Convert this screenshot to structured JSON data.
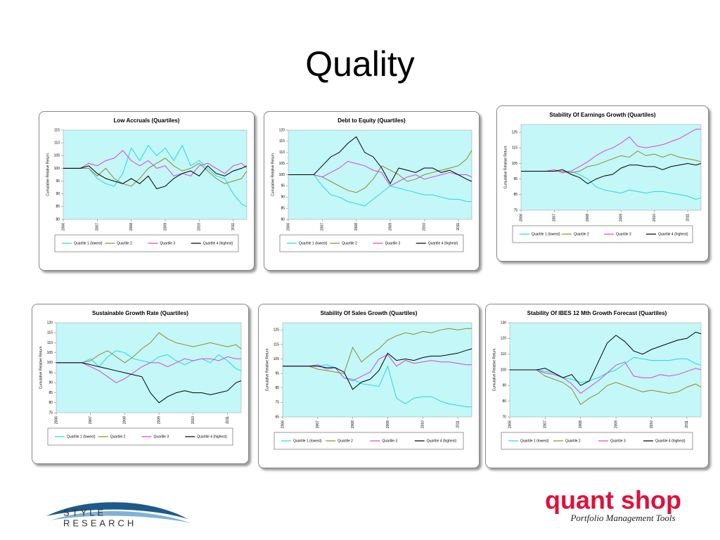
{
  "title": "Quality",
  "footer": {
    "style_research": [
      "STYLE",
      "RESEARCH"
    ],
    "quant_shop": "quant shop",
    "tagline": "Portfolio Management Tools"
  },
  "chart_data": [
    {
      "type": "line",
      "title": "Low Accruals (Quartiles)",
      "y_label": "Cumulative Relative Return",
      "x": [
        2006,
        2006.25,
        2006.5,
        2006.75,
        2007,
        2007.25,
        2007.5,
        2007.75,
        2008,
        2008.25,
        2008.5,
        2008.75,
        2009,
        2009.25,
        2009.5,
        2009.75,
        2010,
        2010.25,
        2010.5,
        2010.75,
        2011,
        2011.25,
        2011.4
      ],
      "xlim": [
        2006,
        2011.4
      ],
      "xticks": [
        2006,
        2007,
        2008,
        2009,
        2010,
        2011
      ],
      "ylim": [
        80,
        115
      ],
      "yticks": [
        80,
        85,
        90,
        95,
        100,
        105,
        110,
        115
      ],
      "series": [
        {
          "name": "Quartile 1 (lowest)",
          "color": "#22d8e8",
          "values": [
            100,
            100,
            100,
            100,
            96,
            94,
            93,
            98,
            108,
            103,
            109,
            105,
            108,
            103,
            109,
            101,
            103,
            100,
            97,
            96,
            90,
            86,
            85
          ]
        },
        {
          "name": "Quartile 2",
          "color": "#8c8c2a",
          "values": [
            100,
            100,
            100,
            100,
            97,
            100,
            96,
            94,
            93,
            96,
            100,
            102,
            104,
            101,
            99,
            100,
            102,
            99,
            96,
            94,
            95,
            96,
            99
          ]
        },
        {
          "name": "Quartile 3",
          "color": "#e03ee0",
          "values": [
            100,
            100,
            100,
            102,
            101,
            103,
            104,
            107,
            103,
            101,
            103,
            100,
            101,
            97,
            98,
            97,
            101,
            102,
            100,
            98,
            101,
            102,
            100
          ]
        },
        {
          "name": "Quartile 4 (highest)",
          "color": "#000000",
          "values": [
            100,
            100,
            100,
            101,
            98,
            96,
            95,
            94,
            96,
            94,
            97,
            92,
            93,
            96,
            98,
            99,
            97,
            101,
            98,
            97,
            99,
            100,
            101
          ]
        }
      ]
    },
    {
      "type": "line",
      "title": "Debt to Equity (Quartiles)",
      "y_label": "Cumulative Relative Return",
      "x": [
        2006,
        2006.25,
        2006.5,
        2006.75,
        2007,
        2007.25,
        2007.5,
        2007.75,
        2008,
        2008.25,
        2008.5,
        2008.75,
        2009,
        2009.25,
        2009.5,
        2009.75,
        2010,
        2010.25,
        2010.5,
        2010.75,
        2011,
        2011.25,
        2011.4
      ],
      "xlim": [
        2006,
        2011.4
      ],
      "xticks": [
        2006,
        2007,
        2008,
        2009,
        2010,
        2011
      ],
      "ylim": [
        80,
        120
      ],
      "yticks": [
        80,
        85,
        90,
        95,
        100,
        105,
        110,
        115,
        120
      ],
      "series": [
        {
          "name": "Quartile 1 (lowest)",
          "color": "#22d8e8",
          "values": [
            100,
            100,
            100,
            100,
            95,
            91,
            90,
            88,
            87,
            86,
            89,
            92,
            95,
            94,
            93,
            92,
            91,
            91,
            90,
            89,
            89,
            88,
            88
          ]
        },
        {
          "name": "Quartile 2",
          "color": "#8c8c2a",
          "values": [
            100,
            100,
            100,
            100,
            99,
            97,
            95,
            93,
            92,
            94,
            98,
            104,
            102,
            100,
            97,
            98,
            100,
            101,
            102,
            103,
            104,
            107,
            111
          ]
        },
        {
          "name": "Quartile 3",
          "color": "#e03ee0",
          "values": [
            100,
            100,
            100,
            100,
            99,
            101,
            103,
            106,
            105,
            104,
            102,
            101,
            95,
            97,
            99,
            100,
            98,
            99,
            100,
            101,
            100,
            100,
            99
          ]
        },
        {
          "name": "Quartile 4 (highest)",
          "color": "#000000",
          "values": [
            100,
            100,
            100,
            100,
            104,
            108,
            110,
            114,
            117,
            110,
            108,
            103,
            96,
            103,
            102,
            101,
            103,
            103,
            101,
            102,
            100,
            98,
            97
          ]
        }
      ]
    },
    {
      "type": "line",
      "title": "Stability Of Earnings Growth (Quartiles)",
      "y_label": "Cumulative Relative Return",
      "x": [
        2006,
        2006.25,
        2006.5,
        2006.75,
        2007,
        2007.25,
        2007.5,
        2007.75,
        2008,
        2008.25,
        2008.5,
        2008.75,
        2009,
        2009.25,
        2009.5,
        2009.75,
        2010,
        2010.25,
        2010.5,
        2010.75,
        2011,
        2011.25,
        2011.4
      ],
      "xlim": [
        2006,
        2011.4
      ],
      "xticks": [
        2006,
        2007,
        2008,
        2009,
        2010,
        2011
      ],
      "ylim": [
        75,
        130
      ],
      "yticks": [
        75,
        85,
        95,
        105,
        115,
        125
      ],
      "series": [
        {
          "name": "Quartile 1 (lowest)",
          "color": "#22d8e8",
          "values": [
            100,
            100,
            100,
            100,
            100,
            100,
            100,
            98,
            95,
            90,
            88,
            87,
            86,
            88,
            87,
            86,
            87,
            87,
            86,
            85,
            84,
            82,
            83
          ]
        },
        {
          "name": "Quartile 2",
          "color": "#8c8c2a",
          "values": [
            100,
            100,
            100,
            100,
            100,
            100,
            99,
            100,
            103,
            104,
            106,
            108,
            110,
            109,
            113,
            110,
            111,
            109,
            111,
            109,
            108,
            107,
            106
          ]
        },
        {
          "name": "Quartile 3",
          "color": "#e03ee0",
          "values": [
            100,
            100,
            100,
            100,
            101,
            99,
            100,
            103,
            106,
            110,
            113,
            115,
            118,
            122,
            116,
            115,
            116,
            117,
            119,
            121,
            124,
            127,
            127
          ]
        },
        {
          "name": "Quartile 4 (highest)",
          "color": "#000000",
          "values": [
            100,
            100,
            100,
            100,
            100,
            101,
            98,
            96,
            92,
            95,
            97,
            98,
            102,
            104,
            104,
            103,
            103,
            101,
            103,
            104,
            105,
            104,
            105
          ]
        }
      ]
    },
    {
      "type": "line",
      "title": "Sustainable Growth Rate (Quartiles)",
      "y_label": "Cumulative Relative Return",
      "x": [
        2006,
        2006.25,
        2006.5,
        2006.75,
        2007,
        2007.25,
        2007.5,
        2007.75,
        2008,
        2008.25,
        2008.5,
        2008.75,
        2009,
        2009.25,
        2009.5,
        2009.75,
        2010,
        2010.25,
        2010.5,
        2010.75,
        2011,
        2011.25,
        2011.4
      ],
      "xlim": [
        2006,
        2011.4
      ],
      "xticks": [
        2006,
        2007,
        2008,
        2009,
        2010,
        2011
      ],
      "ylim": [
        75,
        120
      ],
      "yticks": [
        75,
        80,
        85,
        90,
        95,
        100,
        105,
        110,
        115,
        120
      ],
      "series": [
        {
          "name": "Quartile 1 (lowest)",
          "color": "#22d8e8",
          "values": [
            100,
            100,
            100,
            100,
            102,
            98,
            103,
            106,
            105,
            102,
            101,
            100,
            103,
            104,
            101,
            99,
            101,
            102,
            100,
            104,
            101,
            97,
            96
          ]
        },
        {
          "name": "Quartile 2",
          "color": "#8c8c2a",
          "values": [
            100,
            100,
            100,
            100,
            101,
            104,
            106,
            103,
            100,
            103,
            107,
            110,
            115,
            112,
            110,
            109,
            108,
            109,
            110,
            109,
            108,
            109,
            107
          ]
        },
        {
          "name": "Quartile 3",
          "color": "#e03ee0",
          "values": [
            100,
            100,
            100,
            100,
            98,
            96,
            93,
            90,
            92,
            95,
            98,
            100,
            100,
            98,
            100,
            102,
            101,
            102,
            102,
            101,
            103,
            102,
            102
          ]
        },
        {
          "name": "Quartile 4 (highest)",
          "color": "#000000",
          "values": [
            100,
            100,
            100,
            100,
            99,
            98,
            97,
            96,
            95,
            94,
            93,
            85,
            80,
            83,
            85,
            86,
            85,
            85,
            84,
            85,
            86,
            90,
            91
          ]
        }
      ]
    },
    {
      "type": "line",
      "title": "Stability Of Sales Growth (Quartiles)",
      "y_label": "Cumulative Relative Return",
      "x": [
        2006,
        2006.25,
        2006.5,
        2006.75,
        2007,
        2007.25,
        2007.5,
        2007.75,
        2008,
        2008.25,
        2008.5,
        2008.75,
        2009,
        2009.25,
        2009.5,
        2009.75,
        2010,
        2010.25,
        2010.5,
        2010.75,
        2011,
        2011.25,
        2011.4
      ],
      "xlim": [
        2006,
        2011.4
      ],
      "xticks": [
        2006,
        2007,
        2008,
        2009,
        2010,
        2011
      ],
      "ylim": [
        65,
        130
      ],
      "yticks": [
        65,
        75,
        85,
        95,
        105,
        115,
        125
      ],
      "series": [
        {
          "name": "Quartile 1 (lowest)",
          "color": "#22d8e8",
          "values": [
            100,
            100,
            100,
            100,
            100,
            101,
            99,
            92,
            91,
            88,
            87,
            86,
            100,
            78,
            74,
            78,
            79,
            79,
            76,
            74,
            73,
            72,
            72
          ]
        },
        {
          "name": "Quartile 2",
          "color": "#8c8c2a",
          "values": [
            100,
            100,
            100,
            100,
            98,
            97,
            96,
            95,
            113,
            103,
            108,
            112,
            118,
            121,
            123,
            122,
            124,
            123,
            125,
            126,
            125,
            126,
            126
          ]
        },
        {
          "name": "Quartile 3",
          "color": "#e03ee0",
          "values": [
            100,
            100,
            100,
            100,
            101,
            98,
            99,
            92,
            90,
            93,
            96,
            105,
            108,
            100,
            104,
            102,
            103,
            104,
            103,
            103,
            102,
            101,
            101
          ]
        },
        {
          "name": "Quartile 4 (highest)",
          "color": "#000000",
          "values": [
            100,
            100,
            100,
            100,
            100,
            99,
            99,
            96,
            84,
            89,
            91,
            97,
            109,
            104,
            105,
            104,
            106,
            107,
            107,
            108,
            109,
            111,
            112
          ]
        }
      ]
    },
    {
      "type": "line",
      "title": "Stability Of IBES 12 Mth Growth Forecast (Quartiles)",
      "y_label": "Cumulative Relative Return",
      "x": [
        2006,
        2006.25,
        2006.5,
        2006.75,
        2007,
        2007.25,
        2007.5,
        2007.75,
        2008,
        2008.25,
        2008.5,
        2008.75,
        2009,
        2009.25,
        2009.5,
        2009.75,
        2010,
        2010.25,
        2010.5,
        2010.75,
        2011,
        2011.25,
        2011.4
      ],
      "xlim": [
        2006,
        2011.4
      ],
      "xticks": [
        2006,
        2007,
        2008,
        2009,
        2010,
        2011
      ],
      "ylim": [
        70,
        130
      ],
      "yticks": [
        70,
        80,
        90,
        100,
        110,
        120,
        130
      ],
      "series": [
        {
          "name": "Quartile 1 (lowest)",
          "color": "#22d8e8",
          "values": [
            100,
            100,
            100,
            100,
            99,
            98,
            95,
            94,
            92,
            93,
            95,
            98,
            100,
            104,
            108,
            107,
            106,
            106,
            106,
            107,
            107,
            104,
            103
          ]
        },
        {
          "name": "Quartile 2",
          "color": "#8c8c2a",
          "values": [
            100,
            100,
            100,
            100,
            96,
            94,
            92,
            88,
            78,
            82,
            85,
            90,
            92,
            90,
            88,
            86,
            87,
            86,
            85,
            86,
            89,
            91,
            89
          ]
        },
        {
          "name": "Quartile 3",
          "color": "#e03ee0",
          "values": [
            100,
            100,
            100,
            100,
            98,
            97,
            95,
            91,
            85,
            89,
            93,
            98,
            103,
            105,
            96,
            95,
            95,
            97,
            96,
            97,
            99,
            101,
            100
          ]
        },
        {
          "name": "Quartile 4 (highest)",
          "color": "#000000",
          "values": [
            100,
            100,
            100,
            100,
            101,
            98,
            95,
            97,
            90,
            93,
            105,
            117,
            122,
            118,
            112,
            110,
            113,
            115,
            117,
            119,
            120,
            124,
            123
          ]
        }
      ]
    }
  ]
}
